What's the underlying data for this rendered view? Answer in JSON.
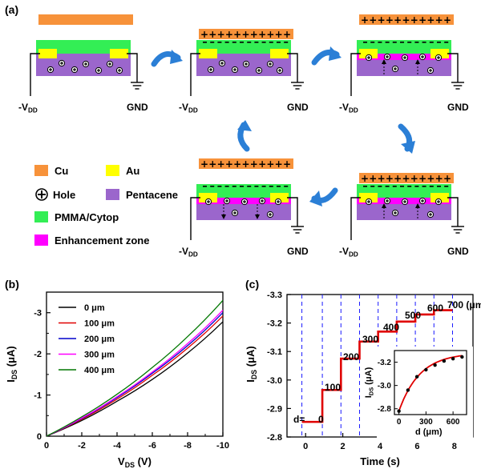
{
  "figure": {
    "panel_a_label": "(a)",
    "panel_b_label": "(b)",
    "panel_c_label": "(c)",
    "electrode_left": "-V",
    "electrode_left_sub": "DD",
    "electrode_right": "GND",
    "legend": {
      "cu": "Cu",
      "au": "Au",
      "hole": "Hole",
      "pentacene": "Pentacene",
      "pmma": "PMMA/Cytop",
      "enhancement": "Enhancement zone"
    },
    "colors": {
      "cu": "#f7923a",
      "au": "#ffff00",
      "pmma": "#33ee55",
      "pentacene": "#9b66cc",
      "enhancement": "#ff00ff",
      "arrow": "#2b7fd6"
    }
  },
  "chart_data": [
    {
      "type": "line",
      "panel": "(b)",
      "xlabel_main": "V",
      "xlabel_sub": "DS",
      "xlabel_unit": "(V)",
      "ylabel_main": "I",
      "ylabel_sub": "DS",
      "ylabel_unit": "(μA)",
      "xlim": [
        0,
        -10
      ],
      "ylim": [
        0,
        -3.5
      ],
      "x_ticks": [
        0,
        -2,
        -4,
        -6,
        -8,
        -10
      ],
      "x_tick_labels": [
        "0",
        "-2",
        "-4",
        "-6",
        "-8",
        "-10"
      ],
      "y_ticks": [
        0,
        -1,
        -2,
        -3
      ],
      "y_tick_labels": [
        "0",
        "-1",
        "-2",
        "-3"
      ],
      "series": [
        {
          "name": "0 μm",
          "color": "#000000",
          "x": [
            0,
            -2,
            -4,
            -6,
            -8,
            -10
          ],
          "y": [
            0,
            -0.38,
            -0.85,
            -1.38,
            -2.02,
            -2.78
          ]
        },
        {
          "name": "100 μm",
          "color": "#e00000",
          "x": [
            0,
            -2,
            -4,
            -6,
            -8,
            -10
          ],
          "y": [
            0,
            -0.41,
            -0.9,
            -1.48,
            -2.14,
            -2.92
          ]
        },
        {
          "name": "200 μm",
          "color": "#0000cc",
          "x": [
            0,
            -2,
            -4,
            -6,
            -8,
            -10
          ],
          "y": [
            0,
            -0.43,
            -0.94,
            -1.53,
            -2.2,
            -3.0
          ]
        },
        {
          "name": "300 μm",
          "color": "#ff00ff",
          "x": [
            0,
            -2,
            -4,
            -6,
            -8,
            -10
          ],
          "y": [
            0,
            -0.44,
            -0.96,
            -1.56,
            -2.25,
            -3.06
          ]
        },
        {
          "name": "400 μm",
          "color": "#007700",
          "x": [
            0,
            -2,
            -4,
            -6,
            -8,
            -10
          ],
          "y": [
            0,
            -0.47,
            -1.02,
            -1.67,
            -2.42,
            -3.3
          ]
        }
      ]
    },
    {
      "type": "line",
      "panel": "(c)",
      "xlabel": "Time (s)",
      "ylabel_main": "I",
      "ylabel_sub": "DS",
      "ylabel_unit": "(μA)",
      "xlim": [
        -1,
        9
      ],
      "ylim": [
        -2.8,
        -3.3
      ],
      "x_ticks": [
        0,
        2,
        4,
        6,
        8
      ],
      "x_tick_labels": [
        "0",
        "2",
        "4",
        "6",
        "8"
      ],
      "y_ticks": [
        -2.8,
        -2.9,
        -3.0,
        -3.1,
        -3.2,
        -3.3
      ],
      "y_tick_labels": [
        "-2.8",
        "-2.9",
        "-3.0",
        "-3.1",
        "-3.2",
        "-3.3"
      ],
      "step_times": [
        -0.2,
        0.9,
        1.9,
        2.9,
        3.9,
        4.9,
        5.9,
        6.9,
        7.9
      ],
      "steps": [
        {
          "label": "0",
          "y": -2.853
        },
        {
          "label": "100",
          "y": -2.965
        },
        {
          "label": "200",
          "y": -3.075
        },
        {
          "label": "300",
          "y": -3.135
        },
        {
          "label": "400",
          "y": -3.17
        },
        {
          "label": "500",
          "y": -3.205
        },
        {
          "label": "600",
          "y": -3.23
        },
        {
          "label": "700 (μm)",
          "y": -3.245
        }
      ],
      "d_prefix": "d=",
      "series_color": "#e00000",
      "inset": {
        "type": "scatter",
        "xlabel": "d (μm)",
        "ylabel_main": "I",
        "ylabel_sub": "DS",
        "ylabel_unit": "(μA)",
        "xlim": [
          -50,
          750
        ],
        "ylim": [
          -2.75,
          -3.3
        ],
        "x_ticks": [
          0,
          300,
          600
        ],
        "x_tick_labels": [
          "0",
          "300",
          "600"
        ],
        "y_ticks": [
          -2.8,
          -3.0,
          -3.2
        ],
        "y_tick_labels": [
          "-2.8",
          "-3.0",
          "-3.2"
        ],
        "points": [
          {
            "x": 0,
            "y": -2.78
          },
          {
            "x": 100,
            "y": -2.96
          },
          {
            "x": 200,
            "y": -3.075
          },
          {
            "x": 300,
            "y": -3.135
          },
          {
            "x": 400,
            "y": -3.175
          },
          {
            "x": 500,
            "y": -3.21
          },
          {
            "x": 600,
            "y": -3.23
          },
          {
            "x": 700,
            "y": -3.245
          }
        ],
        "fit_color": "#e00000"
      }
    }
  ]
}
